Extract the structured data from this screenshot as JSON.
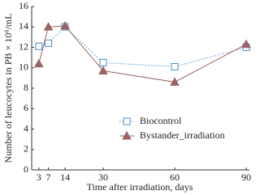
{
  "chart_data": {
    "type": "line",
    "x_label": "Time after irradiation, days",
    "y_label": "Number of leucocytes in PB × 10⁶/mL",
    "x": [
      3,
      7,
      14,
      30,
      60,
      90
    ],
    "series": [
      {
        "name": "Biocontrol",
        "color": "#4a8fc9",
        "marker": "square",
        "line_style": "dotted",
        "values": [
          12.1,
          12.4,
          14.0,
          10.5,
          10.1,
          12.0
        ]
      },
      {
        "name": "Bystander_irradiation",
        "color": "#9a6464",
        "marker": "triangle",
        "line_style": "solid",
        "values": [
          10.4,
          14.0,
          14.1,
          9.7,
          8.6,
          12.3
        ]
      }
    ],
    "xlim": [
      0,
      90
    ],
    "xticks": [
      3,
      7,
      14,
      30,
      60,
      90
    ],
    "ylim": [
      0,
      16
    ],
    "yticks": [
      0,
      2,
      4,
      6,
      8,
      10,
      12,
      14,
      16
    ],
    "grid": false
  }
}
